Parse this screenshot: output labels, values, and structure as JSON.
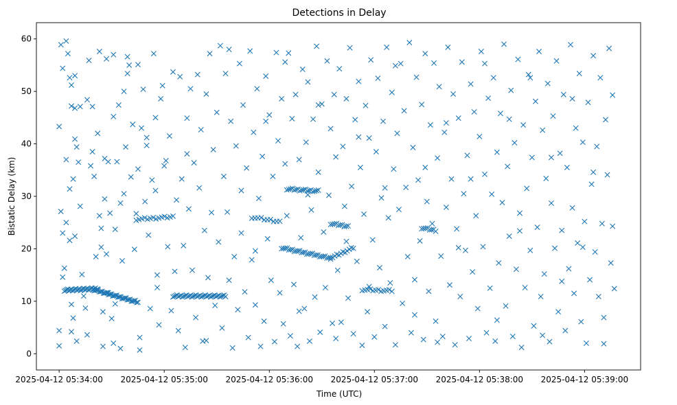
{
  "chart_data": {
    "type": "scatter",
    "title": "Detections in Delay",
    "xlabel": "Time (UTC)",
    "ylabel": "Bistatic Delay (km)",
    "marker": "x",
    "color": "#1f77b4",
    "x_unit": "seconds after 2025-04-12 05:34:00 UTC",
    "xlim": [
      -13,
      332
    ],
    "ylim": [
      -3.1,
      63.1
    ],
    "x_ticks": [
      {
        "value": 0,
        "label": "2025-04-12 05:34:00"
      },
      {
        "value": 60,
        "label": "2025-04-12 05:35:00"
      },
      {
        "value": 120,
        "label": "2025-04-12 05:36:00"
      },
      {
        "value": 180,
        "label": "2025-04-12 05:37:00"
      },
      {
        "value": 240,
        "label": "2025-04-12 05:38:00"
      },
      {
        "value": 300,
        "label": "2025-04-12 05:39:00"
      }
    ],
    "y_ticks": [
      {
        "value": 0,
        "label": "0"
      },
      {
        "value": 10,
        "label": "10"
      },
      {
        "value": 20,
        "label": "20"
      },
      {
        "value": 30,
        "label": "30"
      },
      {
        "value": 40,
        "label": "40"
      },
      {
        "value": 50,
        "label": "50"
      },
      {
        "value": 60,
        "label": "60"
      }
    ],
    "tracks": [
      {
        "name": "track-1",
        "x_start": 3,
        "x_end": 22,
        "y_start": 12.1,
        "y_end": 12.4,
        "count": 30
      },
      {
        "name": "track-2",
        "x_start": 20,
        "x_end": 45,
        "y_start": 12.2,
        "y_end": 9.8,
        "count": 34
      },
      {
        "name": "track-3",
        "x_start": 44,
        "x_end": 65,
        "y_start": 25.6,
        "y_end": 26.1,
        "count": 14
      },
      {
        "name": "track-4",
        "x_start": 65,
        "x_end": 95,
        "y_start": 11.0,
        "y_end": 11.0,
        "count": 40
      },
      {
        "name": "track-5",
        "x_start": 110,
        "x_end": 126,
        "y_start": 26.0,
        "y_end": 25.2,
        "count": 10
      },
      {
        "name": "track-6",
        "x_start": 127,
        "x_end": 155,
        "y_start": 20.2,
        "y_end": 18.2,
        "count": 28
      },
      {
        "name": "track-7",
        "x_start": 130,
        "x_end": 148,
        "y_start": 31.4,
        "y_end": 31.0,
        "count": 18
      },
      {
        "name": "track-8",
        "x_start": 155,
        "x_end": 168,
        "y_start": 18.2,
        "y_end": 20.2,
        "count": 12
      },
      {
        "name": "track-9",
        "x_start": 155,
        "x_end": 165,
        "y_start": 24.8,
        "y_end": 24.3,
        "count": 10
      },
      {
        "name": "track-10",
        "x_start": 173,
        "x_end": 190,
        "y_start": 12.2,
        "y_end": 12.0,
        "count": 12
      },
      {
        "name": "track-11",
        "x_start": 207,
        "x_end": 215,
        "y_start": 24.0,
        "y_end": 23.5,
        "count": 8
      }
    ],
    "scatter_points": [
      [
        0,
        1.5
      ],
      [
        0,
        4.4
      ],
      [
        0,
        43.3
      ],
      [
        1,
        58.9
      ],
      [
        1,
        27.1
      ],
      [
        2,
        54.4
      ],
      [
        2,
        23.0
      ],
      [
        2,
        14.6
      ],
      [
        3,
        16.3
      ],
      [
        4,
        59.6
      ],
      [
        4,
        37.0
      ],
      [
        4,
        25.0
      ],
      [
        5,
        57.2
      ],
      [
        6,
        52.6
      ],
      [
        6,
        31.4
      ],
      [
        6,
        21.6
      ],
      [
        7,
        51.2
      ],
      [
        7,
        47.2
      ],
      [
        7,
        9.4
      ],
      [
        7,
        4.2
      ],
      [
        8,
        33.3
      ],
      [
        8,
        6.8
      ],
      [
        9,
        53.0
      ],
      [
        9,
        46.8
      ],
      [
        9,
        40.9
      ],
      [
        9,
        22.4
      ],
      [
        10,
        39.4
      ],
      [
        10,
        2.4
      ],
      [
        11,
        36.5
      ],
      [
        12,
        28.1
      ],
      [
        13,
        15.1
      ],
      [
        14,
        11.0
      ],
      [
        15,
        8.7
      ],
      [
        16,
        48.4
      ],
      [
        16,
        3.6
      ],
      [
        17,
        55.9
      ],
      [
        18,
        35.8
      ],
      [
        19,
        47.1
      ],
      [
        19,
        38.5
      ],
      [
        20,
        33.8
      ],
      [
        21,
        18.5
      ],
      [
        22,
        42.0
      ],
      [
        23,
        57.6
      ],
      [
        23,
        26.3
      ],
      [
        24,
        23.9
      ],
      [
        24,
        20.3
      ],
      [
        25,
        8.0
      ],
      [
        25,
        1.4
      ],
      [
        26,
        37.2
      ],
      [
        26,
        29.5
      ],
      [
        27,
        56.2
      ],
      [
        27,
        19.0
      ],
      [
        28,
        36.6
      ],
      [
        28,
        11.6
      ],
      [
        29,
        26.8
      ],
      [
        30,
        6.7
      ],
      [
        31,
        57.0
      ],
      [
        31,
        45.2
      ],
      [
        32,
        23.7
      ],
      [
        32,
        9.5
      ],
      [
        33,
        36.6
      ],
      [
        34,
        47.4
      ],
      [
        35,
        1.0
      ],
      [
        35,
        28.7
      ],
      [
        36,
        17.7
      ],
      [
        37,
        50.0
      ],
      [
        37,
        30.5
      ],
      [
        38,
        39.4
      ],
      [
        39,
        53.4
      ],
      [
        40,
        55.0
      ],
      [
        41,
        33.7
      ],
      [
        42,
        43.7
      ],
      [
        43,
        19.9
      ],
      [
        44,
        26.7
      ],
      [
        45,
        55.1
      ],
      [
        45,
        35.2
      ],
      [
        46,
        0.7
      ],
      [
        46,
        3.1
      ],
      [
        47,
        43.0
      ],
      [
        48,
        50.4
      ],
      [
        49,
        29.0
      ],
      [
        50,
        39.7
      ],
      [
        51,
        22.6
      ],
      [
        52,
        8.6
      ],
      [
        53,
        33.1
      ],
      [
        54,
        57.2
      ],
      [
        55,
        45.0
      ],
      [
        55,
        31.1
      ],
      [
        56,
        15.0
      ],
      [
        57,
        5.5
      ],
      [
        58,
        48.6
      ],
      [
        59,
        51.1
      ],
      [
        60,
        35.8
      ],
      [
        61,
        36.8
      ],
      [
        62,
        20.4
      ],
      [
        63,
        41.5
      ],
      [
        64,
        8.2
      ],
      [
        65,
        53.7
      ],
      [
        66,
        15.7
      ],
      [
        67,
        29.3
      ],
      [
        68,
        4.4
      ],
      [
        69,
        52.8
      ],
      [
        70,
        33.3
      ],
      [
        71,
        20.6
      ],
      [
        72,
        1.2
      ],
      [
        73,
        44.9
      ],
      [
        74,
        27.6
      ],
      [
        75,
        50.5
      ],
      [
        76,
        15.9
      ],
      [
        77,
        36.4
      ],
      [
        78,
        6.9
      ],
      [
        79,
        53.2
      ],
      [
        80,
        31.6
      ],
      [
        81,
        42.7
      ],
      [
        82,
        2.4
      ],
      [
        83,
        23.5
      ],
      [
        84,
        49.5
      ],
      [
        85,
        14.5
      ],
      [
        86,
        57.2
      ],
      [
        87,
        26.9
      ],
      [
        88,
        38.9
      ],
      [
        89,
        9.2
      ],
      [
        90,
        46.0
      ],
      [
        91,
        21.3
      ],
      [
        92,
        58.7
      ],
      [
        93,
        4.9
      ],
      [
        94,
        33.8
      ],
      [
        95,
        53.4
      ],
      [
        96,
        27.0
      ],
      [
        97,
        14.0
      ],
      [
        98,
        44.3
      ],
      [
        99,
        1.1
      ],
      [
        100,
        18.5
      ],
      [
        101,
        39.6
      ],
      [
        102,
        8.4
      ],
      [
        103,
        55.3
      ],
      [
        104,
        23.0
      ],
      [
        105,
        47.4
      ],
      [
        106,
        11.8
      ],
      [
        107,
        35.4
      ],
      [
        108,
        3.1
      ],
      [
        109,
        57.7
      ],
      [
        110,
        17.9
      ],
      [
        111,
        42.2
      ],
      [
        112,
        9.3
      ],
      [
        113,
        50.5
      ],
      [
        114,
        29.6
      ],
      [
        115,
        1.4
      ],
      [
        116,
        37.6
      ],
      [
        117,
        6.2
      ],
      [
        118,
        52.9
      ],
      [
        119,
        21.9
      ],
      [
        120,
        45.5
      ],
      [
        121,
        14.0
      ],
      [
        122,
        33.8
      ],
      [
        123,
        2.3
      ],
      [
        124,
        57.4
      ],
      [
        125,
        40.6
      ],
      [
        126,
        11.6
      ],
      [
        127,
        48.6
      ],
      [
        128,
        5.7
      ],
      [
        129,
        36.2
      ],
      [
        130,
        26.3
      ],
      [
        131,
        57.3
      ],
      [
        132,
        3.4
      ],
      [
        133,
        44.8
      ],
      [
        134,
        13.2
      ],
      [
        135,
        49.4
      ],
      [
        136,
        1.4
      ],
      [
        137,
        37.0
      ],
      [
        138,
        22.1
      ],
      [
        139,
        54.2
      ],
      [
        140,
        8.6
      ],
      [
        141,
        40.3
      ],
      [
        142,
        51.8
      ],
      [
        143,
        2.4
      ],
      [
        144,
        27.4
      ],
      [
        145,
        44.7
      ],
      [
        146,
        10.8
      ],
      [
        147,
        58.6
      ],
      [
        148,
        34.6
      ],
      [
        149,
        4.1
      ],
      [
        150,
        47.6
      ],
      [
        151,
        23.2
      ],
      [
        152,
        12.6
      ],
      [
        153,
        55.8
      ],
      [
        154,
        30.2
      ],
      [
        155,
        42.9
      ],
      [
        156,
        5.8
      ],
      [
        157,
        49.4
      ],
      [
        158,
        37.5
      ],
      [
        159,
        15.9
      ],
      [
        160,
        54.3
      ],
      [
        161,
        6.0
      ],
      [
        162,
        39.5
      ],
      [
        163,
        28.1
      ],
      [
        164,
        48.6
      ],
      [
        165,
        10.6
      ],
      [
        166,
        58.3
      ],
      [
        167,
        31.9
      ],
      [
        168,
        3.8
      ],
      [
        169,
        44.6
      ],
      [
        170,
        17.6
      ],
      [
        171,
        51.9
      ],
      [
        172,
        35.5
      ],
      [
        173,
        1.6
      ],
      [
        174,
        26.6
      ],
      [
        175,
        47.3
      ],
      [
        176,
        8.0
      ],
      [
        177,
        41.1
      ],
      [
        178,
        56.0
      ],
      [
        179,
        21.7
      ],
      [
        180,
        3.2
      ],
      [
        181,
        38.5
      ],
      [
        182,
        52.5
      ],
      [
        183,
        16.4
      ],
      [
        184,
        29.7
      ],
      [
        185,
        44.3
      ],
      [
        186,
        5.2
      ],
      [
        187,
        58.4
      ],
      [
        188,
        25.9
      ],
      [
        189,
        13.5
      ],
      [
        190,
        49.8
      ],
      [
        191,
        35.2
      ],
      [
        192,
        1.7
      ],
      [
        193,
        42.0
      ],
      [
        194,
        27.5
      ],
      [
        195,
        55.3
      ],
      [
        196,
        9.6
      ],
      [
        197,
        46.3
      ],
      [
        198,
        31.7
      ],
      [
        199,
        18.5
      ],
      [
        200,
        59.3
      ],
      [
        201,
        4.0
      ],
      [
        202,
        39.3
      ],
      [
        203,
        14.1
      ],
      [
        204,
        52.7
      ],
      [
        205,
        33.1
      ],
      [
        206,
        21.5
      ],
      [
        207,
        47.5
      ],
      [
        208,
        2.7
      ],
      [
        209,
        57.2
      ],
      [
        210,
        29.0
      ],
      [
        211,
        11.9
      ],
      [
        212,
        43.6
      ],
      [
        213,
        24.8
      ],
      [
        214,
        55.4
      ],
      [
        215,
        6.2
      ],
      [
        216,
        37.3
      ],
      [
        217,
        50.9
      ],
      [
        218,
        18.6
      ],
      [
        219,
        3.3
      ],
      [
        220,
        42.2
      ],
      [
        221,
        27.9
      ],
      [
        222,
        58.4
      ],
      [
        223,
        13.1
      ],
      [
        224,
        33.3
      ],
      [
        225,
        49.5
      ],
      [
        226,
        1.7
      ],
      [
        227,
        23.8
      ],
      [
        228,
        44.9
      ],
      [
        229,
        10.9
      ],
      [
        230,
        55.6
      ],
      [
        231,
        30.5
      ],
      [
        232,
        19.7
      ],
      [
        233,
        37.8
      ],
      [
        234,
        2.9
      ],
      [
        235,
        51.4
      ],
      [
        236,
        15.6
      ],
      [
        237,
        46.1
      ],
      [
        238,
        26.3
      ],
      [
        239,
        8.6
      ],
      [
        240,
        41.4
      ],
      [
        241,
        57.6
      ],
      [
        242,
        20.4
      ],
      [
        243,
        34.2
      ],
      [
        244,
        4.0
      ],
      [
        245,
        48.7
      ],
      [
        246,
        12.5
      ],
      [
        247,
        30.4
      ],
      [
        248,
        52.6
      ],
      [
        249,
        2.4
      ],
      [
        250,
        38.4
      ],
      [
        251,
        17.3
      ],
      [
        252,
        45.8
      ],
      [
        253,
        28.8
      ],
      [
        254,
        59.0
      ],
      [
        255,
        9.1
      ],
      [
        256,
        35.7
      ],
      [
        257,
        22.4
      ],
      [
        258,
        50.2
      ],
      [
        259,
        3.3
      ],
      [
        260,
        40.2
      ],
      [
        261,
        16.1
      ],
      [
        262,
        56.1
      ],
      [
        263,
        26.8
      ],
      [
        264,
        1.2
      ],
      [
        265,
        43.6
      ],
      [
        266,
        12.6
      ],
      [
        267,
        31.5
      ],
      [
        268,
        53.2
      ],
      [
        269,
        19.7
      ],
      [
        270,
        37.4
      ],
      [
        271,
        5.3
      ],
      [
        272,
        48.1
      ],
      [
        273,
        24.1
      ],
      [
        274,
        57.6
      ],
      [
        275,
        10.9
      ],
      [
        276,
        42.6
      ],
      [
        277,
        15.2
      ],
      [
        278,
        33.4
      ],
      [
        279,
        51.5
      ],
      [
        280,
        2.3
      ],
      [
        281,
        28.7
      ],
      [
        282,
        45.3
      ],
      [
        283,
        20.1
      ],
      [
        284,
        55.8
      ],
      [
        285,
        8.0
      ],
      [
        286,
        38.2
      ],
      [
        287,
        23.5
      ],
      [
        288,
        49.4
      ],
      [
        289,
        4.4
      ],
      [
        290,
        35.5
      ],
      [
        291,
        16.2
      ],
      [
        292,
        58.9
      ],
      [
        293,
        27.8
      ],
      [
        294,
        11.5
      ],
      [
        295,
        43.0
      ],
      [
        296,
        21.1
      ],
      [
        297,
        53.4
      ],
      [
        298,
        6.1
      ],
      [
        299,
        40.3
      ],
      [
        300,
        25.2
      ],
      [
        301,
        2.0
      ],
      [
        302,
        47.9
      ],
      [
        303,
        14.1
      ],
      [
        304,
        32.3
      ],
      [
        305,
        56.8
      ],
      [
        306,
        19.4
      ],
      [
        307,
        39.5
      ],
      [
        308,
        10.9
      ],
      [
        309,
        52.6
      ],
      [
        310,
        24.8
      ],
      [
        311,
        1.9
      ],
      [
        312,
        44.6
      ],
      [
        313,
        34.1
      ],
      [
        314,
        58.2
      ],
      [
        315,
        17.3
      ],
      [
        316,
        49.3
      ],
      [
        317,
        12.4
      ],
      [
        50,
        41.2
      ],
      [
        56,
        12.6
      ],
      [
        73,
        38.1
      ],
      [
        84,
        2.5
      ],
      [
        97,
        58.0
      ],
      [
        104,
        31.1
      ],
      [
        112,
        19.6
      ],
      [
        118,
        44.3
      ],
      [
        129,
        55.6
      ],
      [
        137,
        8.1
      ],
      [
        142,
        30.3
      ],
      [
        148,
        47.4
      ],
      [
        158,
        2.9
      ],
      [
        164,
        21.4
      ],
      [
        171,
        41.3
      ],
      [
        177,
        12.8
      ],
      [
        186,
        31.6
      ],
      [
        192,
        54.9
      ],
      [
        203,
        7.4
      ],
      [
        209,
        35.5
      ],
      [
        216,
        2.2
      ],
      [
        221,
        44.0
      ],
      [
        228,
        20.2
      ],
      [
        235,
        33.3
      ],
      [
        243,
        55.3
      ],
      [
        250,
        6.4
      ],
      [
        257,
        44.7
      ],
      [
        263,
        23.4
      ],
      [
        269,
        52.6
      ],
      [
        276,
        3.5
      ],
      [
        281,
        37.4
      ],
      [
        287,
        13.8
      ],
      [
        293,
        48.6
      ],
      [
        299,
        20.3
      ],
      [
        305,
        34.6
      ],
      [
        311,
        6.9
      ],
      [
        316,
        24.3
      ],
      [
        12,
        47.1
      ],
      [
        31,
        2.0
      ],
      [
        39,
        56.6
      ]
    ]
  }
}
